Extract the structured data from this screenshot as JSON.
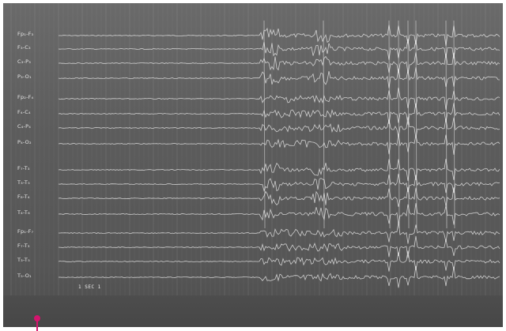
{
  "montage": {
    "channels": [
      "Fp₁-F₃",
      "F₃-C₃",
      "C₃-P₃",
      "P₃-O₁",
      "Fp₂-F₄",
      "F₄-C₄",
      "C₄-P₄",
      "P₄-O₂",
      "F₇-T₃",
      "T₃-T₅",
      "F₈-T₄",
      "T₄-T₆",
      "Fp₁-F₇",
      "F₇-T₃",
      "T₃-T₅",
      "T₅-O₁"
    ]
  },
  "scale_bar": {
    "label": "1 SEC 1"
  },
  "event_marker": {
    "color": "#d4146e"
  }
}
